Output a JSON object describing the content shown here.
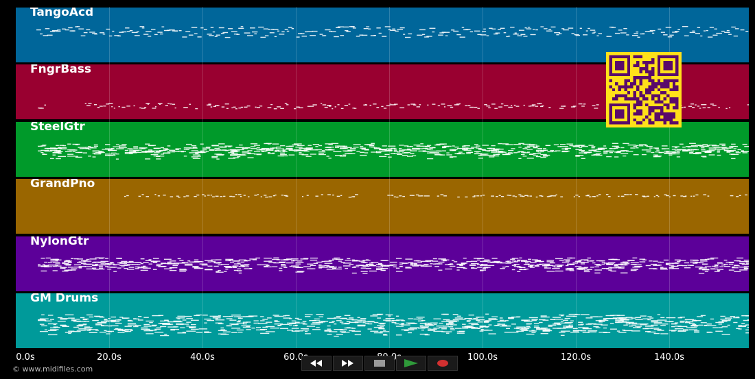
{
  "tracks": [
    {
      "name": "TangoAcd",
      "color": "#00669a"
    },
    {
      "name": "FngrBass",
      "color": "#990030"
    },
    {
      "name": "SteelGtr",
      "color": "#009a2a"
    },
    {
      "name": "GrandPno",
      "color": "#9a6600"
    },
    {
      "name": "NylonGtr",
      "color": "#5c0099"
    },
    {
      "name": "GM Drums",
      "color": "#009a9a"
    }
  ],
  "timeline": {
    "labels": [
      "0.0s",
      "20.0s",
      "40.0s",
      "60.0s",
      "80.0s",
      "100.0s",
      "120.0s",
      "140.0s"
    ]
  },
  "copyright": "© www.midifiles.com",
  "transport": {
    "buttons": [
      {
        "name": "rewind-button",
        "icon": "rewind-icon"
      },
      {
        "name": "fast-forward-button",
        "icon": "fast-forward-icon"
      },
      {
        "name": "stop-button",
        "icon": "stop-icon"
      },
      {
        "name": "play-button",
        "icon": "play-icon",
        "color": "#2f9a3a"
      },
      {
        "name": "record-button",
        "icon": "record-icon",
        "color": "#d23030"
      }
    ]
  },
  "qr_code": {
    "icon": "qr-code-icon",
    "color": "#ffe11a",
    "module_color": "#5a0a6a"
  }
}
